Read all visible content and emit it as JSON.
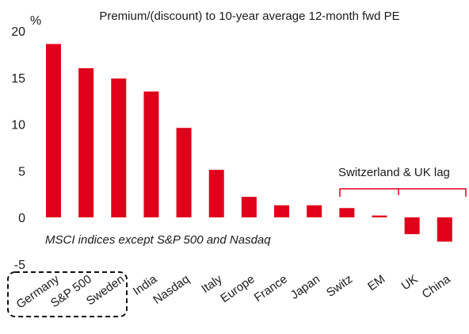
{
  "chart_data": {
    "type": "bar",
    "title": "Premium/(discount) to 10-year average 12-month fwd PE",
    "ylabel": "%",
    "ylim": [
      -5,
      20
    ],
    "yticks": [
      20,
      15,
      10,
      5,
      0,
      -5
    ],
    "categories": [
      "Germany",
      "S&P 500",
      "Sweden",
      "India",
      "Nasdaq",
      "Italy",
      "Europe",
      "France",
      "Japan",
      "Switz",
      "EM",
      "UK",
      "China"
    ],
    "values": [
      18.6,
      16.0,
      14.9,
      13.5,
      9.6,
      5.1,
      2.2,
      1.3,
      1.3,
      1.0,
      0.2,
      -1.8,
      -2.6
    ],
    "bar_color": "#e0001b",
    "note": "MSCI indices except S&P 500 and Nasdaq",
    "annotation": "Switzerland & UK lag",
    "highlight_box_categories": [
      "Germany",
      "S&P 500",
      "Sweden"
    ],
    "grid": false
  }
}
